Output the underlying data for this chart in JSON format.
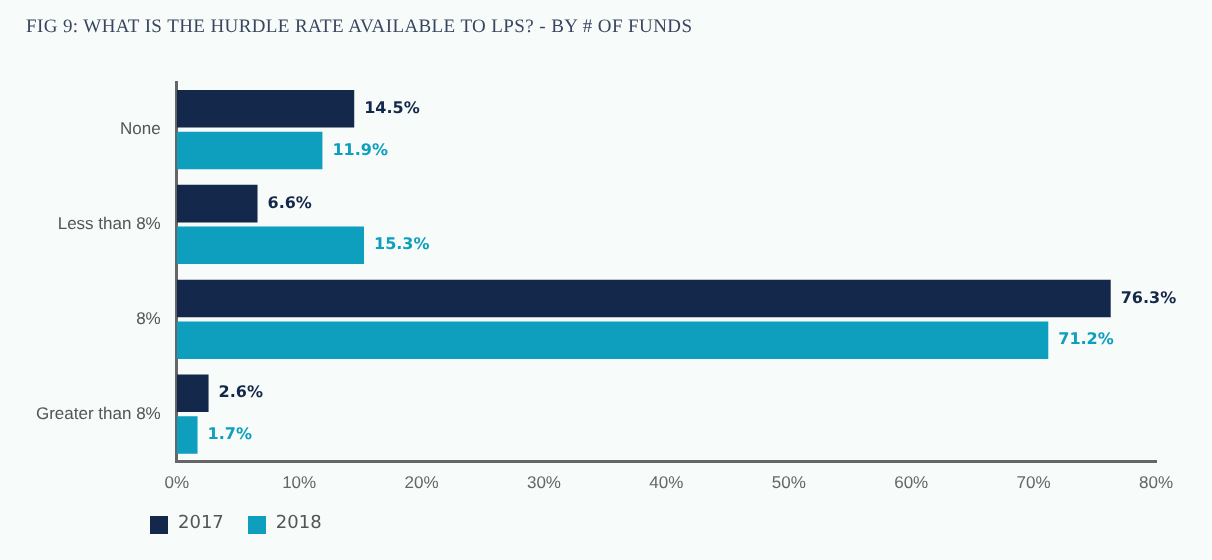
{
  "chart_data": {
    "type": "bar",
    "orientation": "horizontal",
    "title": "FIG 9: WHAT IS THE HURDLE RATE AVAILABLE TO LPS? - BY # OF FUNDS",
    "categories": [
      "None",
      "Less than 8%",
      "8%",
      "Greater than 8%"
    ],
    "series": [
      {
        "name": "2017",
        "color": "#14284b",
        "values": [
          14.5,
          6.6,
          76.3,
          2.6
        ],
        "value_labels": [
          "14.5%",
          "6.6%",
          "76.3%",
          "2.6%"
        ]
      },
      {
        "name": "2018",
        "color": "#0e9fbf",
        "values": [
          11.9,
          15.3,
          71.2,
          1.7
        ],
        "value_labels": [
          "11.9%",
          "15.3%",
          "71.2%",
          "1.7%"
        ]
      }
    ],
    "xlim": [
      0,
      80
    ],
    "xticks": [
      {
        "value": 0,
        "label": "0%"
      },
      {
        "value": 10,
        "label": "10%"
      },
      {
        "value": 20,
        "label": "20%"
      },
      {
        "value": 30,
        "label": "30%"
      },
      {
        "value": 40,
        "label": "40%"
      },
      {
        "value": 50,
        "label": "50%"
      },
      {
        "value": 60,
        "label": "60%"
      },
      {
        "value": 70,
        "label": "70%"
      },
      {
        "value": 80,
        "label": "80%"
      }
    ],
    "grid": false,
    "legend": "bottom left"
  }
}
